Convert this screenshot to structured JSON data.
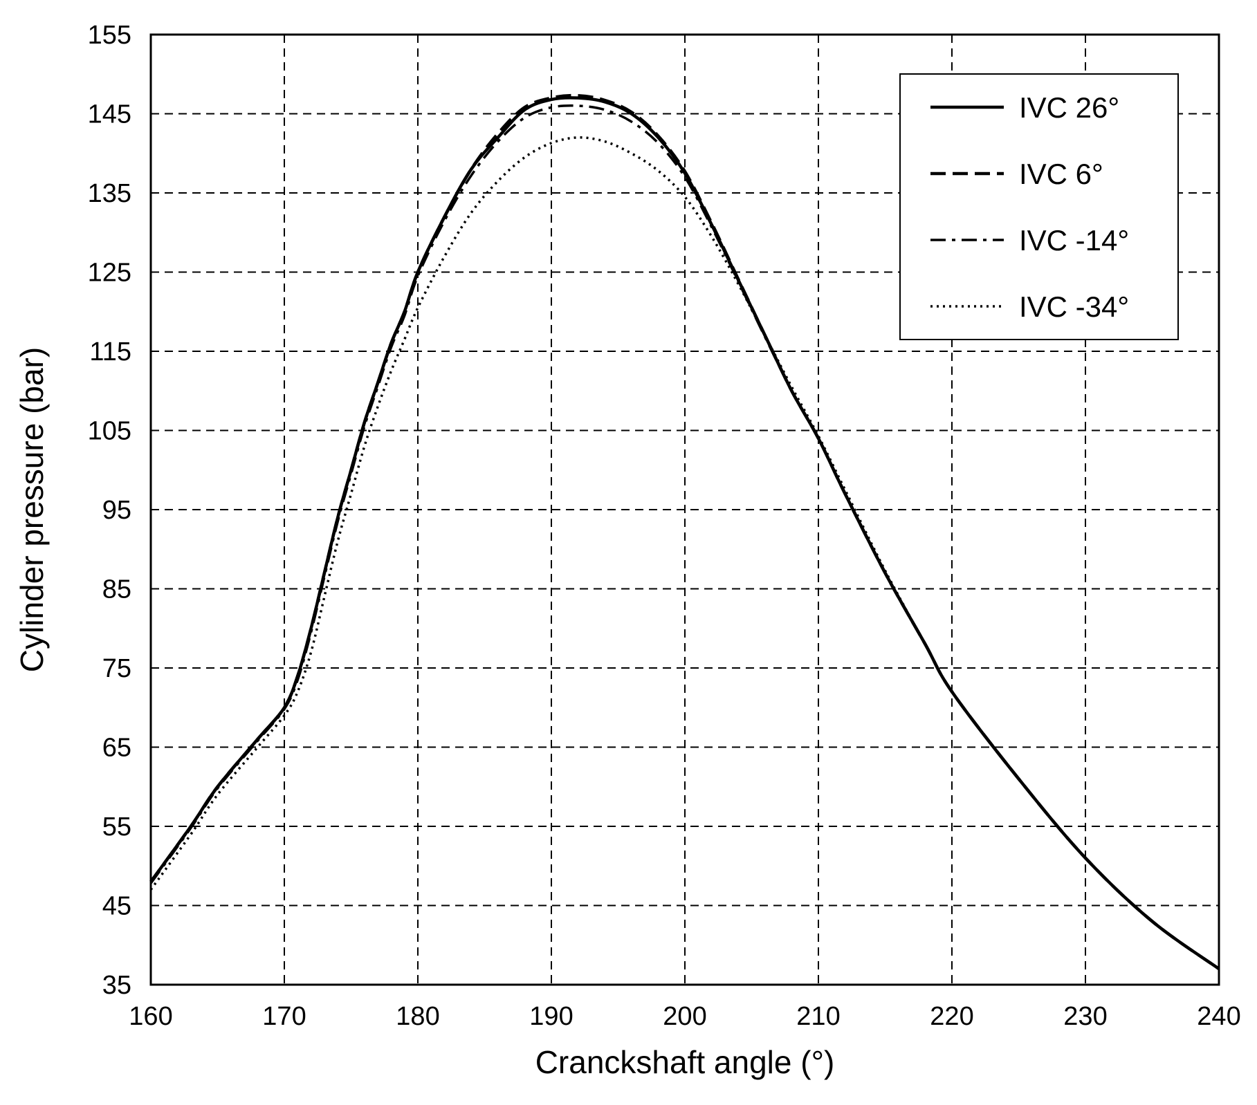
{
  "chart_data": {
    "type": "line",
    "title": "",
    "xlabel": "Cranckshaft angle (°)",
    "ylabel": "Cylinder pressure (bar)",
    "xlim": [
      160,
      240
    ],
    "ylim": [
      35,
      155
    ],
    "xticks": [
      "160",
      "170",
      "180",
      "190",
      "200",
      "210",
      "220",
      "230",
      "240"
    ],
    "yticks": [
      "35",
      "45",
      "55",
      "65",
      "75",
      "85",
      "95",
      "105",
      "115",
      "125",
      "135",
      "145",
      "155"
    ],
    "grid": true,
    "legend_position": "top-right",
    "series": [
      {
        "name": "IVC 26°",
        "style": "solid",
        "x": [
          160,
          163,
          165,
          168,
          170,
          171,
          172,
          173,
          174,
          175,
          176,
          177,
          178,
          179,
          180,
          182,
          184,
          186,
          188,
          190,
          192,
          194,
          196,
          198,
          200,
          202,
          204,
          206,
          208,
          210,
          212,
          215,
          218,
          220,
          225,
          230,
          235,
          240
        ],
        "y": [
          48,
          55,
          60,
          66,
          70,
          74,
          80,
          87,
          94,
          100,
          106,
          111,
          116,
          120,
          125,
          132,
          138,
          142,
          145.5,
          146.8,
          147,
          146.5,
          145,
          142,
          137.5,
          131,
          124,
          117,
          110,
          104,
          97,
          87,
          78,
          72,
          61,
          51,
          43,
          37
        ]
      },
      {
        "name": "IVC 6°",
        "style": "dashed",
        "x": [
          160,
          163,
          165,
          168,
          170,
          171,
          172,
          173,
          174,
          175,
          176,
          177,
          178,
          179,
          180,
          182,
          184,
          186,
          188,
          190,
          192,
          194,
          196,
          198,
          200,
          202,
          204,
          206,
          208,
          210,
          212,
          215,
          218,
          220,
          225,
          230,
          235,
          240
        ],
        "y": [
          48,
          55,
          60,
          66,
          70,
          74,
          80,
          87,
          94,
          100,
          106,
          111,
          116,
          120,
          125,
          132,
          138,
          142.5,
          145.8,
          147,
          147.3,
          146.7,
          145.2,
          142.2,
          137.7,
          131.2,
          124.1,
          117,
          110,
          104,
          97,
          87,
          78,
          72,
          61,
          51,
          43,
          37
        ]
      },
      {
        "name": "IVC -14°",
        "style": "dashdot",
        "x": [
          160,
          163,
          165,
          168,
          170,
          171,
          172,
          173,
          174,
          175,
          176,
          177,
          178,
          179,
          180,
          182,
          184,
          186,
          188,
          190,
          192,
          194,
          196,
          198,
          200,
          202,
          204,
          206,
          208,
          210,
          212,
          215,
          218,
          220,
          225,
          230,
          235,
          240
        ],
        "y": [
          47.8,
          54.8,
          59.8,
          65.8,
          69.8,
          73.5,
          79.5,
          86.5,
          93.5,
          99.5,
          105.5,
          110.5,
          115.5,
          119.5,
          124.5,
          131.5,
          137.2,
          141.5,
          144.5,
          145.8,
          146,
          145.5,
          144,
          141.3,
          137,
          130.7,
          123.8,
          116.8,
          110,
          104,
          97,
          87,
          78,
          72,
          61,
          51,
          43,
          37
        ]
      },
      {
        "name": "IVC -34°",
        "style": "dotted",
        "x": [
          160,
          163,
          165,
          168,
          170,
          171,
          172,
          173,
          174,
          175,
          176,
          177,
          178,
          179,
          180,
          182,
          184,
          186,
          188,
          190,
          192,
          194,
          196,
          198,
          200,
          202,
          204,
          206,
          208,
          210,
          212,
          215,
          218,
          220,
          225,
          230,
          235,
          240
        ],
        "y": [
          47,
          54,
          59,
          65,
          69,
          72,
          77,
          84,
          91,
          97,
          103,
          108,
          112.5,
          116.5,
          120.5,
          127,
          132.5,
          136.5,
          139.5,
          141.3,
          142,
          141.5,
          140,
          137.8,
          134.5,
          129.5,
          123.5,
          117,
          110.5,
          104.3,
          97.5,
          87.3,
          78,
          72,
          61,
          51,
          43,
          37
        ]
      }
    ]
  }
}
